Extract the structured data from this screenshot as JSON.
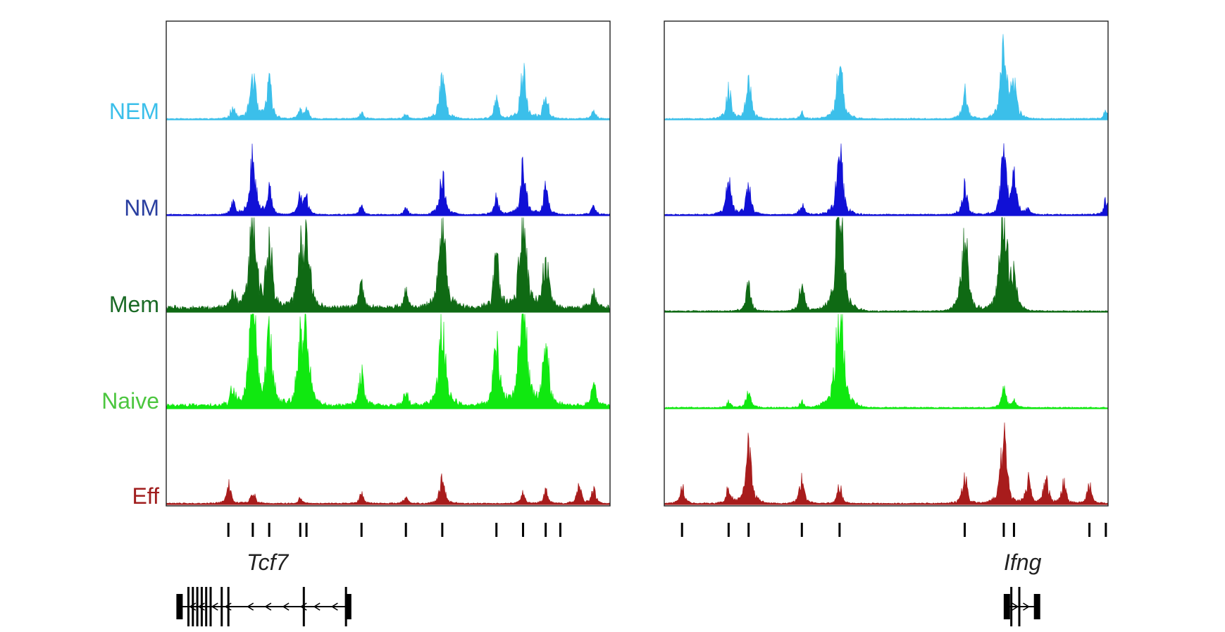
{
  "tracks": [
    {
      "key": "NEM",
      "label": "NEM",
      "color": "#3bbfea",
      "label_color": "#3bbfea"
    },
    {
      "key": "NM",
      "label": "NM",
      "color": "#1010d6",
      "label_color": "#2a3fa0"
    },
    {
      "key": "Mem",
      "label": "Mem",
      "color": "#0f6a14",
      "label_color": "#1a6a25"
    },
    {
      "key": "Naive",
      "label": "Naive",
      "color": "#10e810",
      "label_color": "#4cc63f"
    },
    {
      "key": "Eff",
      "label": "Eff",
      "color": "#a81c1c",
      "label_color": "#a01e1e"
    }
  ],
  "panels": [
    {
      "gene": "Tcf7",
      "gene_strand": "minus",
      "baselines": {
        "NEM": 0.01,
        "NM": 0.01,
        "Mem": 0.04,
        "Naive": 0.03,
        "Eff": 0.01
      },
      "peak_marks": [
        0.14,
        0.195,
        0.232,
        0.302,
        0.316,
        0.44,
        0.54,
        0.622,
        0.744,
        0.804,
        0.855,
        0.888
      ],
      "profiles": {
        "NEM": [
          [
            0.15,
            0.12
          ],
          [
            0.195,
            0.42
          ],
          [
            0.232,
            0.34
          ],
          [
            0.302,
            0.08
          ],
          [
            0.316,
            0.08
          ],
          [
            0.44,
            0.05
          ],
          [
            0.54,
            0.04
          ],
          [
            0.622,
            0.45
          ],
          [
            0.744,
            0.18
          ],
          [
            0.804,
            0.44
          ],
          [
            0.855,
            0.26
          ],
          [
            0.963,
            0.08
          ]
        ],
        "NM": [
          [
            0.15,
            0.12
          ],
          [
            0.195,
            0.52
          ],
          [
            0.232,
            0.24
          ],
          [
            0.302,
            0.17
          ],
          [
            0.316,
            0.14
          ],
          [
            0.44,
            0.07
          ],
          [
            0.54,
            0.07
          ],
          [
            0.622,
            0.38
          ],
          [
            0.744,
            0.16
          ],
          [
            0.804,
            0.46
          ],
          [
            0.855,
            0.26
          ],
          [
            0.963,
            0.08
          ]
        ],
        "Mem": [
          [
            0.15,
            0.16
          ],
          [
            0.195,
            0.8
          ],
          [
            0.232,
            0.6
          ],
          [
            0.302,
            0.45
          ],
          [
            0.316,
            0.66
          ],
          [
            0.44,
            0.2
          ],
          [
            0.54,
            0.15
          ],
          [
            0.622,
            0.78
          ],
          [
            0.744,
            0.44
          ],
          [
            0.804,
            0.82
          ],
          [
            0.855,
            0.48
          ],
          [
            0.963,
            0.15
          ]
        ],
        "Naive": [
          [
            0.15,
            0.16
          ],
          [
            0.195,
            0.86
          ],
          [
            0.232,
            0.68
          ],
          [
            0.302,
            0.56
          ],
          [
            0.316,
            0.62
          ],
          [
            0.44,
            0.3
          ],
          [
            0.54,
            0.12
          ],
          [
            0.622,
            0.72
          ],
          [
            0.744,
            0.58
          ],
          [
            0.804,
            0.95
          ],
          [
            0.855,
            0.56
          ],
          [
            0.963,
            0.18
          ]
        ],
        "Eff": [
          [
            0.14,
            0.18
          ],
          [
            0.195,
            0.12
          ],
          [
            0.302,
            0.05
          ],
          [
            0.44,
            0.09
          ],
          [
            0.54,
            0.07
          ],
          [
            0.622,
            0.25
          ],
          [
            0.804,
            0.1
          ],
          [
            0.855,
            0.12
          ],
          [
            0.93,
            0.16
          ],
          [
            0.963,
            0.13
          ]
        ]
      },
      "gene_model": {
        "start": 0.03,
        "end": 0.415,
        "exons": [
          0.03,
          0.05,
          0.06,
          0.07,
          0.08,
          0.09,
          0.1,
          0.125,
          0.14,
          0.31,
          0.405,
          0.41
        ],
        "chevrons": [
          0.06,
          0.08,
          0.11,
          0.14,
          0.19,
          0.23,
          0.27,
          0.31,
          0.34,
          0.38
        ]
      }
    },
    {
      "gene": "Ifng",
      "gene_strand": "plus",
      "baselines": {
        "NEM": 0.01,
        "NM": 0.01,
        "Mem": 0.01,
        "Naive": 0.01,
        "Eff": 0.01
      },
      "peak_marks": [
        0.04,
        0.145,
        0.19,
        0.31,
        0.395,
        0.677,
        0.765,
        0.788,
        0.958,
        0.995
      ],
      "profiles": {
        "NEM": [
          [
            0.145,
            0.28
          ],
          [
            0.19,
            0.34
          ],
          [
            0.31,
            0.06
          ],
          [
            0.395,
            0.55
          ],
          [
            0.677,
            0.26
          ],
          [
            0.765,
            0.62
          ],
          [
            0.788,
            0.35
          ],
          [
            0.995,
            0.08
          ]
        ],
        "NM": [
          [
            0.145,
            0.32
          ],
          [
            0.19,
            0.3
          ],
          [
            0.31,
            0.1
          ],
          [
            0.395,
            0.6
          ],
          [
            0.677,
            0.28
          ],
          [
            0.765,
            0.52
          ],
          [
            0.788,
            0.34
          ],
          [
            0.82,
            0.06
          ],
          [
            0.995,
            0.14
          ]
        ],
        "Mem": [
          [
            0.19,
            0.24
          ],
          [
            0.31,
            0.26
          ],
          [
            0.395,
            0.98
          ],
          [
            0.677,
            0.7
          ],
          [
            0.765,
            0.98
          ],
          [
            0.788,
            0.26
          ]
        ],
        "Naive": [
          [
            0.145,
            0.06
          ],
          [
            0.19,
            0.16
          ],
          [
            0.31,
            0.06
          ],
          [
            0.395,
            0.98
          ],
          [
            0.765,
            0.18
          ],
          [
            0.788,
            0.08
          ]
        ],
        "Eff": [
          [
            0.04,
            0.18
          ],
          [
            0.145,
            0.16
          ],
          [
            0.19,
            0.52
          ],
          [
            0.31,
            0.22
          ],
          [
            0.395,
            0.16
          ],
          [
            0.677,
            0.26
          ],
          [
            0.765,
            0.6
          ],
          [
            0.82,
            0.22
          ],
          [
            0.86,
            0.26
          ],
          [
            0.9,
            0.2
          ],
          [
            0.958,
            0.18
          ]
        ]
      },
      "gene_model": {
        "start": 0.772,
        "end": 0.845,
        "exons": [
          0.772,
          0.782,
          0.8,
          0.84
        ],
        "chevrons": [
          0.79,
          0.815
        ]
      }
    }
  ]
}
